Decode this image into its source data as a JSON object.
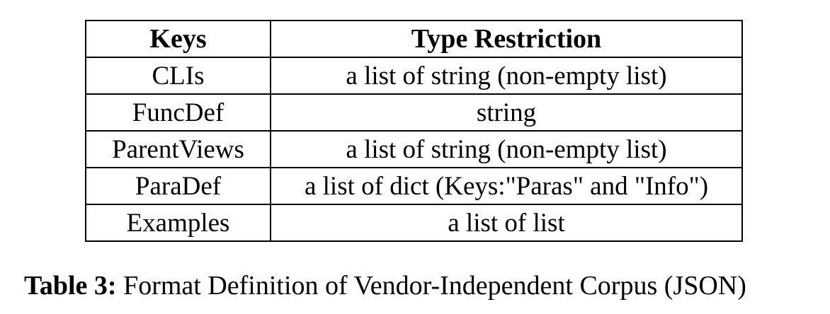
{
  "table": {
    "headers": [
      "Keys",
      "Type Restriction"
    ],
    "rows": [
      [
        "CLIs",
        "a list of string (non-empty list)"
      ],
      [
        "FuncDef",
        "string"
      ],
      [
        "ParentViews",
        "a list of string (non-empty list)"
      ],
      [
        "ParaDef",
        "a list of dict (Keys:\"Paras\" and \"Info\")"
      ],
      [
        "Examples",
        "a list of list"
      ]
    ]
  },
  "caption": {
    "label": "Table 3:",
    "text": "Format Definition of Vendor-Independent Corpus (JSON)"
  }
}
